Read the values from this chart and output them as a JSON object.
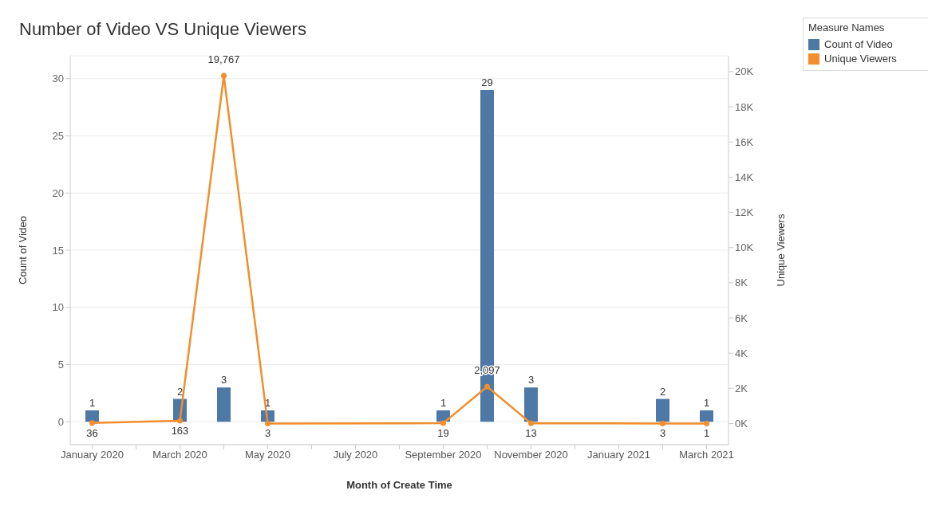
{
  "chart_data": {
    "type": "bar",
    "title": "Number of Video VS Unique Viewers",
    "xlabel": "Month of Create Time",
    "ylabel": "Count of Video",
    "y2label": "Unique Viewers",
    "legend_title": "Measure Names",
    "categories": [
      "January 2020",
      null,
      "March 2020",
      null,
      "May 2020",
      null,
      "July 2020",
      null,
      "September 2020",
      null,
      "November 2020",
      null,
      "January 2021",
      null,
      "March 2021"
    ],
    "series": [
      {
        "name": "Count of Video",
        "color": "#4e79a7",
        "values": [
          1,
          null,
          2,
          3,
          1,
          null,
          null,
          null,
          1,
          29,
          3,
          null,
          null,
          2,
          1
        ]
      },
      {
        "name": "Unique Viewers",
        "type": "line",
        "axis": "y2",
        "color": "#f28e2b",
        "values": [
          36,
          null,
          163,
          19767,
          3,
          null,
          null,
          null,
          19,
          2097,
          13,
          null,
          null,
          3,
          1
        ],
        "value_labels": [
          "36",
          null,
          "163",
          "19,767",
          "3",
          null,
          null,
          null,
          "19",
          "2,097",
          "13",
          null,
          null,
          "3",
          "1"
        ]
      }
    ],
    "ylim": [
      -2,
      32
    ],
    "yticks": [
      0,
      5,
      10,
      15,
      20,
      25,
      30
    ],
    "y2lim": [
      -1200,
      20900
    ],
    "y2ticks": [
      {
        "value": 0,
        "label": "0K"
      },
      {
        "value": 2000,
        "label": "2K"
      },
      {
        "value": 4000,
        "label": "4K"
      },
      {
        "value": 6000,
        "label": "6K"
      },
      {
        "value": 8000,
        "label": "8K"
      },
      {
        "value": 10000,
        "label": "10K"
      },
      {
        "value": 12000,
        "label": "12K"
      },
      {
        "value": 14000,
        "label": "14K"
      },
      {
        "value": 16000,
        "label": "16K"
      },
      {
        "value": 18000,
        "label": "18K"
      },
      {
        "value": 20000,
        "label": "20K"
      }
    ],
    "grid": "y",
    "legend": "top right",
    "marker": "circle",
    "line_style": "solid",
    "data_labels": true
  }
}
